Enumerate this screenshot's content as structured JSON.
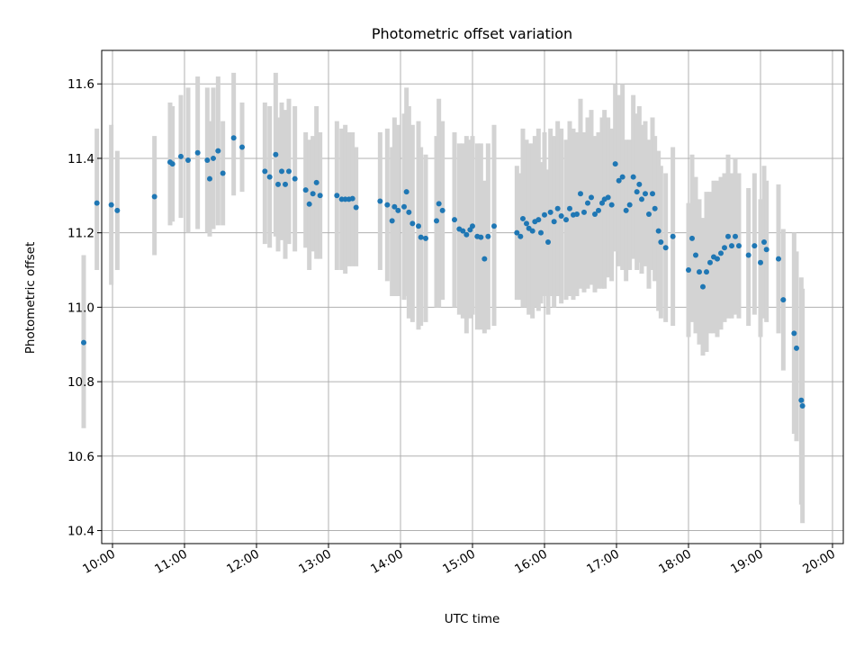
{
  "chart_data": {
    "type": "scatter",
    "title": "Photometric offset variation",
    "xlabel": "UTC time",
    "ylabel": "Photometric offset",
    "x_unit": "hours (UTC)",
    "xlim": [
      "09:51",
      "20:09"
    ],
    "ylim": [
      10.365,
      11.69
    ],
    "xticks": [
      "10:00",
      "11:00",
      "12:00",
      "13:00",
      "14:00",
      "15:00",
      "16:00",
      "17:00",
      "18:00",
      "19:00",
      "20:00"
    ],
    "yticks": [
      10.4,
      10.6,
      10.8,
      11.0,
      11.2,
      11.4,
      11.6
    ],
    "ytick_labels": [
      "10.4",
      "10.6",
      "10.8",
      "11.0",
      "11.2",
      "11.4",
      "11.6"
    ],
    "grid": true,
    "legend": "none",
    "colors": {
      "point": "#1f77b4",
      "errorbar": "#d3d3d3",
      "grid": "#b0b0b0"
    },
    "series": [
      {
        "x": [
          "09:36",
          "09:47",
          "09:59",
          "10:04",
          "10:35",
          "10:48",
          "10:50",
          "10:57",
          "11:03",
          "11:11",
          "11:19",
          "11:21",
          "11:24",
          "11:28",
          "11:32",
          "11:41",
          "11:48",
          "12:07",
          "12:11",
          "12:16",
          "12:18",
          "12:21",
          "12:24",
          "12:27",
          "12:32",
          "12:41",
          "12:44",
          "12:47",
          "12:50",
          "12:53",
          "13:07",
          "13:11",
          "13:14",
          "13:17",
          "13:20",
          "13:23",
          "13:43",
          "13:49",
          "13:53",
          "13:55",
          "13:58",
          "14:03",
          "14:05",
          "14:07",
          "14:10",
          "14:15",
          "14:17",
          "14:21",
          "14:30",
          "14:32",
          "14:35",
          "14:45",
          "14:49",
          "14:52",
          "14:55",
          "14:58",
          "15:00",
          "15:04",
          "15:07",
          "15:10",
          "15:13",
          "15:18",
          "15:37",
          "15:40",
          "15:42",
          "15:45",
          "15:47",
          "15:50",
          "15:52",
          "15:55",
          "15:57",
          "16:00",
          "16:03",
          "16:05",
          "16:08",
          "16:11",
          "16:14",
          "16:18",
          "16:21",
          "16:24",
          "16:27",
          "16:30",
          "16:33",
          "16:36",
          "16:39",
          "16:42",
          "16:45",
          "16:48",
          "16:50",
          "16:53",
          "16:56",
          "16:59",
          "17:02",
          "17:05",
          "17:08",
          "17:11",
          "17:14",
          "17:17",
          "17:19",
          "17:21",
          "17:24",
          "17:27",
          "17:30",
          "17:32",
          "17:35",
          "17:37",
          "17:41",
          "17:47",
          "18:00",
          "18:03",
          "18:06",
          "18:09",
          "18:12",
          "18:15",
          "18:18",
          "18:21",
          "18:24",
          "18:27",
          "18:30",
          "18:33",
          "18:36",
          "18:39",
          "18:42",
          "18:50",
          "18:55",
          "19:00",
          "19:03",
          "19:05",
          "19:15",
          "19:19",
          "19:28",
          "19:30",
          "19:34",
          "19:35"
        ],
        "y": [
          10.905,
          11.28,
          11.275,
          11.26,
          11.297,
          11.39,
          11.385,
          11.405,
          11.395,
          11.415,
          11.395,
          11.345,
          11.4,
          11.42,
          11.36,
          11.455,
          11.43,
          11.365,
          11.35,
          11.41,
          11.33,
          11.365,
          11.33,
          11.365,
          11.345,
          11.315,
          11.277,
          11.305,
          11.335,
          11.3,
          11.3,
          11.29,
          11.29,
          11.29,
          11.292,
          11.268,
          11.285,
          11.275,
          11.232,
          11.27,
          11.26,
          11.27,
          11.31,
          11.255,
          11.225,
          11.218,
          11.188,
          11.185,
          11.232,
          11.278,
          11.26,
          11.235,
          11.21,
          11.205,
          11.195,
          11.208,
          11.218,
          11.19,
          11.188,
          11.13,
          11.19,
          11.218,
          11.2,
          11.19,
          11.238,
          11.225,
          11.212,
          11.205,
          11.23,
          11.235,
          11.2,
          11.248,
          11.175,
          11.255,
          11.23,
          11.265,
          11.245,
          11.235,
          11.265,
          11.248,
          11.25,
          11.305,
          11.255,
          11.28,
          11.295,
          11.25,
          11.26,
          11.28,
          11.29,
          11.295,
          11.275,
          11.385,
          11.34,
          11.35,
          11.26,
          11.275,
          11.35,
          11.31,
          11.33,
          11.29,
          11.305,
          11.25,
          11.305,
          11.265,
          11.205,
          11.175,
          11.16,
          11.19,
          11.1,
          11.185,
          11.14,
          11.095,
          11.055,
          11.095,
          11.12,
          11.135,
          11.13,
          11.145,
          11.16,
          11.19,
          11.165,
          11.19,
          11.165,
          11.14,
          11.165,
          11.12,
          11.175,
          11.155,
          11.13,
          11.02,
          10.93,
          10.89,
          10.75,
          10.735
        ],
        "err_low": [
          10.675,
          11.1,
          11.06,
          11.1,
          11.14,
          11.22,
          11.23,
          11.24,
          11.2,
          11.21,
          11.2,
          11.19,
          11.21,
          11.22,
          11.22,
          11.3,
          11.31,
          11.17,
          11.16,
          11.19,
          11.15,
          11.18,
          11.13,
          11.17,
          11.15,
          11.16,
          11.1,
          11.15,
          11.13,
          11.13,
          11.1,
          11.1,
          11.09,
          11.11,
          11.11,
          11.11,
          11.1,
          11.07,
          11.03,
          11.03,
          11.03,
          11.02,
          11.03,
          10.97,
          10.96,
          10.94,
          10.95,
          10.96,
          11.0,
          11.0,
          11.02,
          11.0,
          10.98,
          10.97,
          10.93,
          10.97,
          10.98,
          10.94,
          10.94,
          10.93,
          10.94,
          10.95,
          11.02,
          11.02,
          11.0,
          11.0,
          10.98,
          10.97,
          11.0,
          10.99,
          11.01,
          11.03,
          10.98,
          11.03,
          11.0,
          11.03,
          11.01,
          11.02,
          11.03,
          11.02,
          11.03,
          11.05,
          11.04,
          11.05,
          11.06,
          11.04,
          11.05,
          11.05,
          11.05,
          11.08,
          11.07,
          11.15,
          11.11,
          11.1,
          11.07,
          11.1,
          11.13,
          11.1,
          11.12,
          11.09,
          11.11,
          11.05,
          11.1,
          11.07,
          10.99,
          10.97,
          10.96,
          10.95,
          10.92,
          10.96,
          10.93,
          10.9,
          10.87,
          10.88,
          10.93,
          10.93,
          10.92,
          10.94,
          10.96,
          10.97,
          10.97,
          10.98,
          10.97,
          10.95,
          10.98,
          10.92,
          10.97,
          10.96,
          10.93,
          10.83,
          10.66,
          10.64,
          10.47,
          10.42
        ],
        "err_high": [
          11.14,
          11.48,
          11.49,
          11.42,
          11.46,
          11.55,
          11.54,
          11.57,
          11.59,
          11.62,
          11.59,
          11.5,
          11.59,
          11.62,
          11.5,
          11.63,
          11.55,
          11.55,
          11.54,
          11.63,
          11.51,
          11.55,
          11.53,
          11.56,
          11.54,
          11.47,
          11.45,
          11.46,
          11.54,
          11.47,
          11.5,
          11.48,
          11.49,
          11.47,
          11.47,
          11.43,
          11.47,
          11.48,
          11.43,
          11.51,
          11.49,
          11.52,
          11.59,
          11.54,
          11.49,
          11.5,
          11.43,
          11.41,
          11.46,
          11.56,
          11.5,
          11.47,
          11.44,
          11.44,
          11.46,
          11.45,
          11.46,
          11.44,
          11.44,
          11.34,
          11.44,
          11.49,
          11.38,
          11.36,
          11.48,
          11.45,
          11.44,
          11.44,
          11.46,
          11.48,
          11.39,
          11.47,
          11.37,
          11.48,
          11.46,
          11.5,
          11.48,
          11.45,
          11.5,
          11.48,
          11.47,
          11.56,
          11.47,
          11.51,
          11.53,
          11.46,
          11.47,
          11.51,
          11.53,
          11.51,
          11.48,
          11.6,
          11.57,
          11.6,
          11.45,
          11.45,
          11.57,
          11.52,
          11.54,
          11.49,
          11.5,
          11.45,
          11.51,
          11.46,
          11.42,
          11.38,
          11.36,
          11.43,
          11.28,
          11.41,
          11.35,
          11.29,
          11.24,
          11.31,
          11.31,
          11.34,
          11.34,
          11.35,
          11.36,
          11.41,
          11.36,
          11.4,
          11.36,
          11.32,
          11.36,
          11.29,
          11.38,
          11.34,
          11.33,
          11.21,
          11.2,
          11.15,
          11.08,
          11.05
        ]
      }
    ]
  }
}
